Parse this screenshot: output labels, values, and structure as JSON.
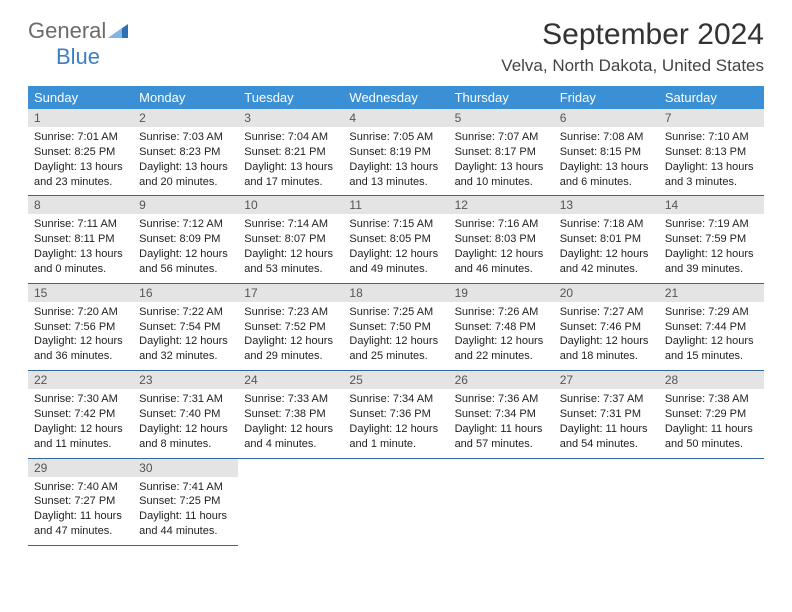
{
  "brand": {
    "general": "General",
    "blue": "Blue"
  },
  "header": {
    "month_title": "September 2024",
    "location": "Velva, North Dakota, United States"
  },
  "columns": [
    "Sunday",
    "Monday",
    "Tuesday",
    "Wednesday",
    "Thursday",
    "Friday",
    "Saturday"
  ],
  "colors": {
    "header_bg": "#3b8fd4",
    "header_text": "#ffffff",
    "daynum_bg": "#e4e4e4",
    "border": "#34689c",
    "brand_blue": "#3b7fc4",
    "brand_gray": "#6b6b6b"
  },
  "weeks": [
    [
      {
        "n": "1",
        "sr": "7:01 AM",
        "ss": "8:25 PM",
        "dl": "13 hours and 23 minutes."
      },
      {
        "n": "2",
        "sr": "7:03 AM",
        "ss": "8:23 PM",
        "dl": "13 hours and 20 minutes."
      },
      {
        "n": "3",
        "sr": "7:04 AM",
        "ss": "8:21 PM",
        "dl": "13 hours and 17 minutes."
      },
      {
        "n": "4",
        "sr": "7:05 AM",
        "ss": "8:19 PM",
        "dl": "13 hours and 13 minutes."
      },
      {
        "n": "5",
        "sr": "7:07 AM",
        "ss": "8:17 PM",
        "dl": "13 hours and 10 minutes."
      },
      {
        "n": "6",
        "sr": "7:08 AM",
        "ss": "8:15 PM",
        "dl": "13 hours and 6 minutes."
      },
      {
        "n": "7",
        "sr": "7:10 AM",
        "ss": "8:13 PM",
        "dl": "13 hours and 3 minutes."
      }
    ],
    [
      {
        "n": "8",
        "sr": "7:11 AM",
        "ss": "8:11 PM",
        "dl": "13 hours and 0 minutes."
      },
      {
        "n": "9",
        "sr": "7:12 AM",
        "ss": "8:09 PM",
        "dl": "12 hours and 56 minutes."
      },
      {
        "n": "10",
        "sr": "7:14 AM",
        "ss": "8:07 PM",
        "dl": "12 hours and 53 minutes."
      },
      {
        "n": "11",
        "sr": "7:15 AM",
        "ss": "8:05 PM",
        "dl": "12 hours and 49 minutes."
      },
      {
        "n": "12",
        "sr": "7:16 AM",
        "ss": "8:03 PM",
        "dl": "12 hours and 46 minutes."
      },
      {
        "n": "13",
        "sr": "7:18 AM",
        "ss": "8:01 PM",
        "dl": "12 hours and 42 minutes."
      },
      {
        "n": "14",
        "sr": "7:19 AM",
        "ss": "7:59 PM",
        "dl": "12 hours and 39 minutes."
      }
    ],
    [
      {
        "n": "15",
        "sr": "7:20 AM",
        "ss": "7:56 PM",
        "dl": "12 hours and 36 minutes."
      },
      {
        "n": "16",
        "sr": "7:22 AM",
        "ss": "7:54 PM",
        "dl": "12 hours and 32 minutes."
      },
      {
        "n": "17",
        "sr": "7:23 AM",
        "ss": "7:52 PM",
        "dl": "12 hours and 29 minutes."
      },
      {
        "n": "18",
        "sr": "7:25 AM",
        "ss": "7:50 PM",
        "dl": "12 hours and 25 minutes."
      },
      {
        "n": "19",
        "sr": "7:26 AM",
        "ss": "7:48 PM",
        "dl": "12 hours and 22 minutes."
      },
      {
        "n": "20",
        "sr": "7:27 AM",
        "ss": "7:46 PM",
        "dl": "12 hours and 18 minutes."
      },
      {
        "n": "21",
        "sr": "7:29 AM",
        "ss": "7:44 PM",
        "dl": "12 hours and 15 minutes."
      }
    ],
    [
      {
        "n": "22",
        "sr": "7:30 AM",
        "ss": "7:42 PM",
        "dl": "12 hours and 11 minutes."
      },
      {
        "n": "23",
        "sr": "7:31 AM",
        "ss": "7:40 PM",
        "dl": "12 hours and 8 minutes."
      },
      {
        "n": "24",
        "sr": "7:33 AM",
        "ss": "7:38 PM",
        "dl": "12 hours and 4 minutes."
      },
      {
        "n": "25",
        "sr": "7:34 AM",
        "ss": "7:36 PM",
        "dl": "12 hours and 1 minute."
      },
      {
        "n": "26",
        "sr": "7:36 AM",
        "ss": "7:34 PM",
        "dl": "11 hours and 57 minutes."
      },
      {
        "n": "27",
        "sr": "7:37 AM",
        "ss": "7:31 PM",
        "dl": "11 hours and 54 minutes."
      },
      {
        "n": "28",
        "sr": "7:38 AM",
        "ss": "7:29 PM",
        "dl": "11 hours and 50 minutes."
      }
    ],
    [
      {
        "n": "29",
        "sr": "7:40 AM",
        "ss": "7:27 PM",
        "dl": "11 hours and 47 minutes."
      },
      {
        "n": "30",
        "sr": "7:41 AM",
        "ss": "7:25 PM",
        "dl": "11 hours and 44 minutes."
      },
      null,
      null,
      null,
      null,
      null
    ]
  ],
  "labels": {
    "sunrise": "Sunrise:",
    "sunset": "Sunset:",
    "daylight": "Daylight:"
  }
}
